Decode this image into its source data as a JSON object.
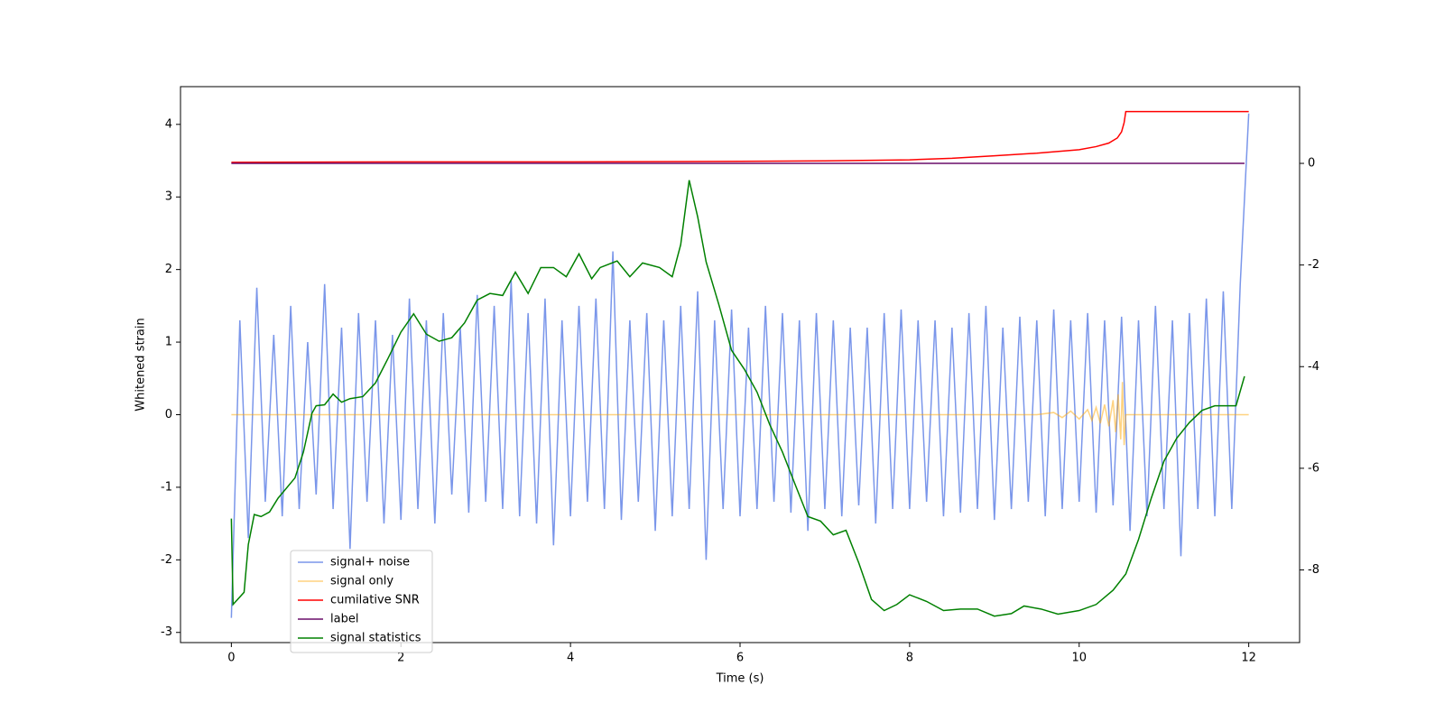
{
  "chart_data": {
    "type": "line",
    "xlabel": "Time (s)",
    "ylabel": "Whitened strain",
    "xlim": [
      -0.6,
      12.6
    ],
    "xticks": [
      0,
      2,
      4,
      6,
      8,
      10,
      12
    ],
    "ylim": [
      -3.14,
      4.52
    ],
    "yticks": [
      -3,
      -2,
      -1,
      0,
      1,
      2,
      3,
      4
    ],
    "y2lim": [
      -9.43,
      1.51
    ],
    "y2ticks": [
      -8,
      -6,
      -4,
      -2,
      0
    ],
    "legend": "lower left",
    "series": [
      {
        "name": "signal+ noise",
        "color": "#4169e1",
        "alpha": 0.7,
        "axis": "y",
        "x": [
          0,
          0.1,
          0.2,
          0.3,
          0.4,
          0.5,
          0.6,
          0.7,
          0.8,
          0.9,
          1,
          1.1,
          1.2,
          1.3,
          1.4,
          1.5,
          1.6,
          1.7,
          1.8,
          1.9,
          2,
          2.1,
          2.2,
          2.3,
          2.4,
          2.5,
          2.6,
          2.7,
          2.8,
          2.9,
          3,
          3.1,
          3.2,
          3.3,
          3.4,
          3.5,
          3.6,
          3.7,
          3.8,
          3.9,
          4,
          4.1,
          4.2,
          4.3,
          4.4,
          4.5,
          4.6,
          4.7,
          4.8,
          4.9,
          5,
          5.1,
          5.2,
          5.3,
          5.4,
          5.5,
          5.6,
          5.7,
          5.8,
          5.9,
          6,
          6.1,
          6.2,
          6.3,
          6.4,
          6.5,
          6.6,
          6.7,
          6.8,
          6.9,
          7,
          7.1,
          7.2,
          7.3,
          7.4,
          7.5,
          7.6,
          7.7,
          7.8,
          7.9,
          8,
          8.1,
          8.2,
          8.3,
          8.4,
          8.5,
          8.6,
          8.7,
          8.8,
          8.9,
          9,
          9.1,
          9.2,
          9.3,
          9.4,
          9.5,
          9.6,
          9.7,
          9.8,
          9.9,
          10,
          10.1,
          10.2,
          10.3,
          10.4,
          10.5,
          10.6,
          10.7,
          10.8,
          10.9,
          11,
          11.1,
          11.2,
          11.3,
          11.4,
          11.5,
          11.6,
          11.7,
          11.8,
          11.9,
          12
        ],
        "values": [
          -2.8,
          1.3,
          -1.7,
          1.75,
          -1.2,
          1.1,
          -1.4,
          1.5,
          -1.3,
          1.0,
          -1.1,
          1.8,
          -1.3,
          1.2,
          -1.85,
          1.4,
          -1.2,
          1.3,
          -1.5,
          1.1,
          -1.45,
          1.6,
          -1.3,
          1.3,
          -1.5,
          1.4,
          -1.1,
          1.2,
          -1.35,
          1.65,
          -1.2,
          1.5,
          -1.3,
          1.85,
          -1.4,
          1.4,
          -1.5,
          1.6,
          -1.8,
          1.3,
          -1.4,
          1.5,
          -1.2,
          1.6,
          -1.3,
          2.25,
          -1.45,
          1.3,
          -1.2,
          1.4,
          -1.6,
          1.3,
          -1.4,
          1.5,
          -1.3,
          1.7,
          -2.0,
          1.3,
          -1.3,
          1.45,
          -1.4,
          1.2,
          -1.3,
          1.5,
          -1.2,
          1.4,
          -1.35,
          1.3,
          -1.6,
          1.4,
          -1.3,
          1.3,
          -1.4,
          1.2,
          -1.25,
          1.2,
          -1.5,
          1.4,
          -1.3,
          1.45,
          -1.3,
          1.3,
          -1.2,
          1.3,
          -1.4,
          1.2,
          -1.35,
          1.4,
          -1.3,
          1.5,
          -1.45,
          1.2,
          -1.3,
          1.35,
          -1.2,
          1.3,
          -1.4,
          1.45,
          -1.3,
          1.3,
          -1.2,
          1.4,
          -1.35,
          1.3,
          -1.25,
          1.35,
          -1.6,
          1.3,
          -1.4,
          1.5,
          -1.3,
          1.3,
          -1.95,
          1.4,
          -1.3,
          1.6,
          -1.4,
          1.7,
          -1.3,
          1.8,
          4.15
        ]
      },
      {
        "name": "signal only",
        "color": "#ffa500",
        "alpha": 0.5,
        "axis": "y",
        "x": [
          0,
          9.5,
          9.7,
          9.8,
          9.9,
          10.0,
          10.1,
          10.15,
          10.2,
          10.25,
          10.3,
          10.35,
          10.4,
          10.43,
          10.46,
          10.49,
          10.51,
          10.53,
          10.55,
          12
        ],
        "values": [
          0,
          0,
          0.03,
          -0.04,
          0.05,
          -0.06,
          0.07,
          -0.08,
          0.1,
          -0.12,
          0.14,
          -0.16,
          0.2,
          -0.24,
          0.28,
          -0.34,
          0.45,
          -0.42,
          0,
          0
        ]
      },
      {
        "name": "cumilative SNR",
        "color": "#ff0000",
        "alpha": 1,
        "axis": "y2",
        "x": [
          0,
          2,
          4,
          6,
          7,
          8,
          8.5,
          9,
          9.5,
          10,
          10.2,
          10.35,
          10.45,
          10.5,
          10.53,
          10.55,
          12
        ],
        "values": [
          0.02,
          0.03,
          0.03,
          0.04,
          0.05,
          0.07,
          0.1,
          0.15,
          0.2,
          0.27,
          0.33,
          0.4,
          0.5,
          0.62,
          0.8,
          1.02,
          1.02
        ]
      },
      {
        "name": "label",
        "color": "#6a0d6a",
        "alpha": 1,
        "axis": "y2",
        "x": [
          0,
          11.95
        ],
        "values": [
          0,
          0
        ]
      },
      {
        "name": "signal statistics",
        "color": "#008000",
        "alpha": 1,
        "axis": "y2",
        "x": [
          0,
          0.02,
          0.15,
          0.2,
          0.27,
          0.35,
          0.45,
          0.55,
          0.75,
          0.85,
          0.95,
          1.0,
          1.1,
          1.2,
          1.3,
          1.4,
          1.55,
          1.7,
          1.85,
          2.0,
          2.15,
          2.3,
          2.45,
          2.6,
          2.75,
          2.9,
          3.05,
          3.2,
          3.35,
          3.5,
          3.65,
          3.8,
          3.95,
          4.1,
          4.25,
          4.35,
          4.55,
          4.7,
          4.85,
          5.05,
          5.2,
          5.3,
          5.4,
          5.5,
          5.6,
          5.75,
          5.9,
          6.05,
          6.2,
          6.35,
          6.5,
          6.65,
          6.8,
          6.95,
          7.1,
          7.25,
          7.4,
          7.55,
          7.7,
          7.85,
          8.0,
          8.2,
          8.4,
          8.6,
          8.8,
          9.0,
          9.2,
          9.35,
          9.55,
          9.75,
          10.0,
          10.2,
          10.4,
          10.55,
          10.7,
          10.85,
          11.0,
          11.15,
          11.3,
          11.45,
          11.6,
          11.75,
          11.85,
          11.95
        ],
        "values": [
          -6.99,
          -8.68,
          -8.44,
          -7.5,
          -6.91,
          -6.95,
          -6.86,
          -6.59,
          -6.19,
          -5.68,
          -4.92,
          -4.77,
          -4.75,
          -4.54,
          -4.7,
          -4.63,
          -4.59,
          -4.32,
          -3.83,
          -3.32,
          -2.96,
          -3.36,
          -3.5,
          -3.43,
          -3.14,
          -2.69,
          -2.56,
          -2.6,
          -2.14,
          -2.56,
          -2.05,
          -2.05,
          -2.23,
          -1.78,
          -2.27,
          -2.05,
          -1.92,
          -2.23,
          -1.96,
          -2.05,
          -2.23,
          -1.6,
          -0.33,
          -1.05,
          -1.94,
          -2.78,
          -3.68,
          -4.05,
          -4.5,
          -5.14,
          -5.68,
          -6.32,
          -6.95,
          -7.04,
          -7.31,
          -7.22,
          -7.86,
          -8.58,
          -8.8,
          -8.68,
          -8.49,
          -8.62,
          -8.8,
          -8.77,
          -8.77,
          -8.91,
          -8.86,
          -8.71,
          -8.77,
          -8.87,
          -8.8,
          -8.68,
          -8.4,
          -8.08,
          -7.4,
          -6.59,
          -5.86,
          -5.41,
          -5.1,
          -4.86,
          -4.77,
          -4.77,
          -4.77,
          -4.19
        ]
      }
    ]
  }
}
